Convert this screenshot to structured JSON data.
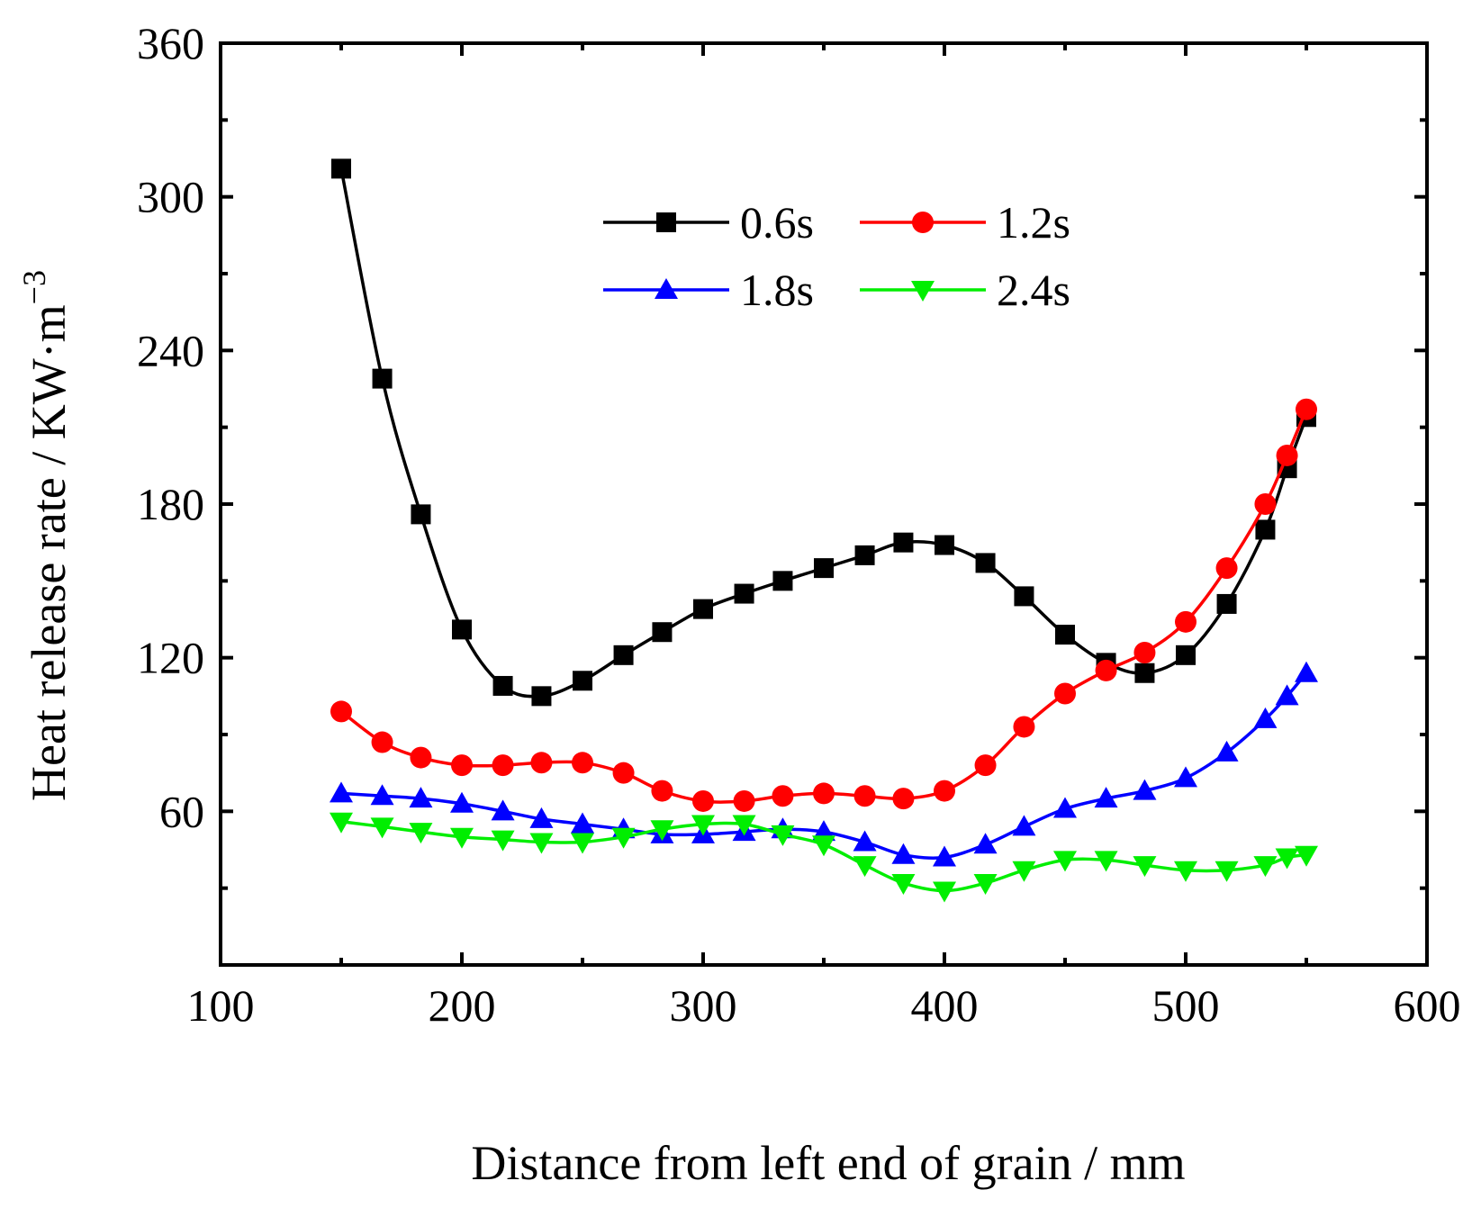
{
  "chart_data": {
    "type": "line",
    "title": "",
    "xlabel": "Distance from left end of grain / mm",
    "ylabel": "Heat release rate  / KW·m",
    "ylabel_superscript": "−3",
    "xlim": [
      100,
      600
    ],
    "ylim": [
      0,
      360
    ],
    "xticks": [
      100,
      200,
      300,
      400,
      500,
      600
    ],
    "yticks": [
      60,
      120,
      180,
      240,
      300,
      360
    ],
    "legend": "top-center",
    "series": [
      {
        "name": "0.6s",
        "color": "#000000",
        "marker": "square",
        "x": [
          150,
          167,
          183,
          200,
          217,
          233,
          250,
          267,
          283,
          300,
          317,
          333,
          350,
          367,
          383,
          400,
          417,
          433,
          450,
          467,
          483,
          500,
          517,
          533,
          542,
          550
        ],
        "y": [
          311,
          229,
          176,
          131,
          109,
          105,
          111,
          121,
          130,
          139,
          145,
          150,
          155,
          160,
          165,
          164,
          157,
          144,
          129,
          118,
          114,
          121,
          141,
          170,
          194,
          214
        ]
      },
      {
        "name": "1.2s",
        "color": "#ff0000",
        "marker": "circle",
        "x": [
          150,
          167,
          183,
          200,
          217,
          233,
          250,
          267,
          283,
          300,
          317,
          333,
          350,
          367,
          383,
          400,
          417,
          433,
          450,
          467,
          483,
          500,
          517,
          533,
          542,
          550
        ],
        "y": [
          99,
          87,
          81,
          78,
          78,
          79,
          79,
          75,
          68,
          64,
          64,
          66,
          67,
          66,
          65,
          68,
          78,
          93,
          106,
          115,
          122,
          134,
          155,
          180,
          199,
          217
        ]
      },
      {
        "name": "1.8s",
        "color": "#0000ff",
        "marker": "triangle-up",
        "x": [
          150,
          167,
          183,
          200,
          217,
          233,
          250,
          267,
          283,
          300,
          317,
          333,
          350,
          367,
          383,
          400,
          417,
          433,
          450,
          467,
          483,
          500,
          517,
          533,
          542,
          550
        ],
        "y": [
          67,
          66,
          65,
          63,
          60,
          57,
          55,
          53,
          51,
          51,
          52,
          53,
          52,
          48,
          43,
          42,
          47,
          54,
          61,
          65,
          68,
          73,
          83,
          96,
          105,
          114
        ]
      },
      {
        "name": "2.4s",
        "color": "#00ee00",
        "marker": "triangle-down",
        "x": [
          150,
          167,
          183,
          200,
          217,
          233,
          250,
          267,
          283,
          300,
          317,
          333,
          350,
          367,
          383,
          400,
          417,
          433,
          450,
          467,
          483,
          500,
          517,
          533,
          542,
          550
        ],
        "y": [
          56,
          54,
          52,
          50,
          49,
          48,
          48,
          50,
          53,
          55,
          55,
          51,
          47,
          39,
          32,
          29,
          32,
          37,
          41,
          41,
          39,
          37,
          37,
          39,
          42,
          43
        ]
      }
    ]
  }
}
